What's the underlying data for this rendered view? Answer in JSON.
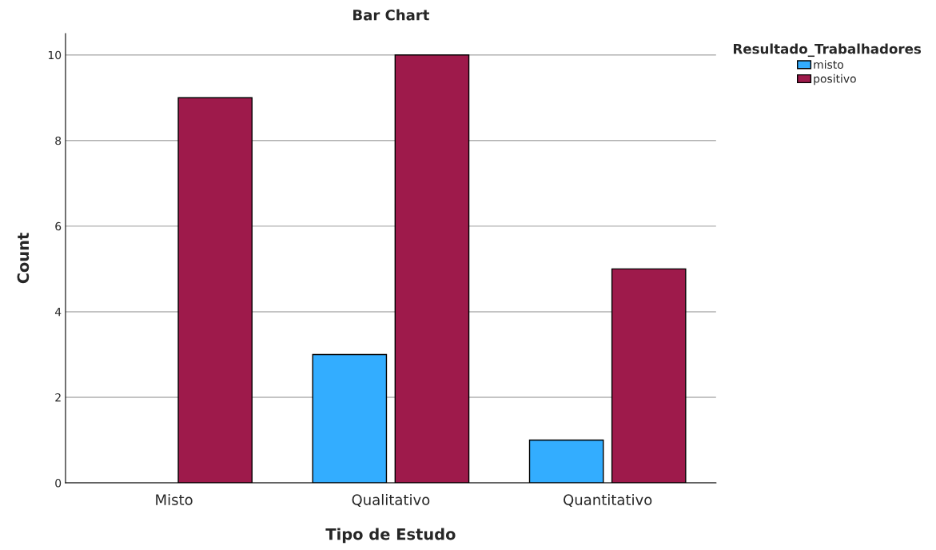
{
  "chart_data": {
    "type": "bar",
    "title": "Bar Chart",
    "xlabel": "Tipo de Estudo",
    "ylabel": "Count",
    "legend_title": "Resultado_Trabalhadores",
    "categories": [
      "Misto",
      "Qualitativo",
      "Quantitativo"
    ],
    "series": [
      {
        "name": "misto",
        "color": "#33adff",
        "values": [
          null,
          3,
          1
        ]
      },
      {
        "name": "positivo",
        "color": "#9e1a4b",
        "values": [
          9,
          10,
          5
        ]
      }
    ],
    "ylim": [
      0,
      10.5
    ],
    "yticks": [
      0,
      2,
      4,
      6,
      8,
      10
    ],
    "grid": "y",
    "legend": "top right"
  }
}
